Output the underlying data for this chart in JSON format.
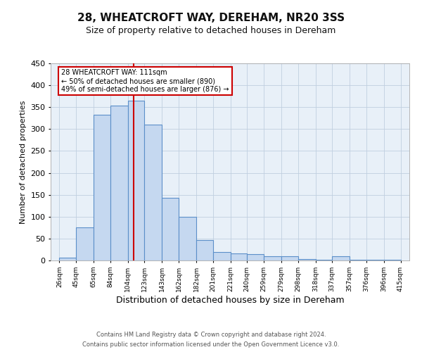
{
  "title": "28, WHEATCROFT WAY, DEREHAM, NR20 3SS",
  "subtitle": "Size of property relative to detached houses in Dereham",
  "xlabel": "Distribution of detached houses by size in Dereham",
  "ylabel": "Number of detached properties",
  "bar_left_edges": [
    26,
    45,
    65,
    84,
    104,
    123,
    143,
    162,
    182,
    201,
    221,
    240,
    259,
    279,
    298,
    318,
    337,
    357,
    376,
    396
  ],
  "bar_widths": [
    19,
    20,
    19,
    20,
    19,
    20,
    19,
    20,
    19,
    20,
    19,
    19,
    20,
    19,
    20,
    19,
    20,
    19,
    20,
    19
  ],
  "bar_heights": [
    7,
    75,
    333,
    353,
    365,
    310,
    143,
    99,
    46,
    20,
    16,
    14,
    10,
    9,
    4,
    1,
    10,
    1,
    1,
    2
  ],
  "bar_color": "#c5d8f0",
  "bar_edge_color": "#5b8fc9",
  "vline_x": 111,
  "vline_color": "#cc0000",
  "ylim": [
    0,
    450
  ],
  "yticks": [
    0,
    50,
    100,
    150,
    200,
    250,
    300,
    350,
    400,
    450
  ],
  "xtick_labels": [
    "26sqm",
    "45sqm",
    "65sqm",
    "84sqm",
    "104sqm",
    "123sqm",
    "143sqm",
    "162sqm",
    "182sqm",
    "201sqm",
    "221sqm",
    "240sqm",
    "259sqm",
    "279sqm",
    "298sqm",
    "318sqm",
    "337sqm",
    "357sqm",
    "376sqm",
    "396sqm",
    "415sqm"
  ],
  "xtick_positions": [
    26,
    45,
    65,
    84,
    104,
    123,
    143,
    162,
    182,
    201,
    221,
    240,
    259,
    279,
    298,
    318,
    337,
    357,
    376,
    396,
    415
  ],
  "annotation_title": "28 WHEATCROFT WAY: 111sqm",
  "annotation_line1": "← 50% of detached houses are smaller (890)",
  "annotation_line2": "49% of semi-detached houses are larger (876) →",
  "annotation_box_color": "#ffffff",
  "annotation_box_edge_color": "#cc0000",
  "grid_color": "#c0cfe0",
  "bg_color": "#e8f0f8",
  "footnote1": "Contains HM Land Registry data © Crown copyright and database right 2024.",
  "footnote2": "Contains public sector information licensed under the Open Government Licence v3.0.",
  "title_fontsize": 11,
  "subtitle_fontsize": 9,
  "xlabel_fontsize": 9,
  "ylabel_fontsize": 8
}
